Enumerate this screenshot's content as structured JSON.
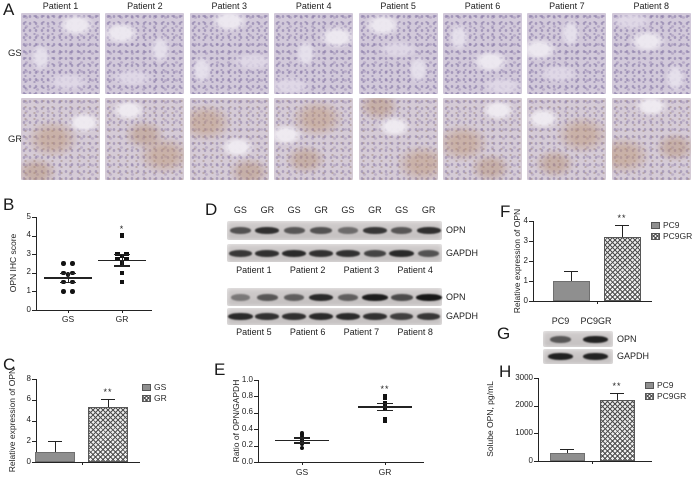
{
  "panels": {
    "A": {
      "label": "A",
      "rows": [
        "GS",
        "GR"
      ],
      "patients": [
        "Patient 1",
        "Patient 2",
        "Patient 3",
        "Patient 4",
        "Patient 5",
        "Patient 6",
        "Patient 7",
        "Patient 8"
      ]
    },
    "D": {
      "label": "D",
      "groups": [
        {
          "lane_labels": [
            "GS",
            "GR",
            "GS",
            "GR",
            "GS",
            "GR",
            "GS",
            "GR"
          ],
          "rows": [
            {
              "name": "OPN",
              "bands": [
                0.55,
                0.8,
                0.5,
                0.55,
                0.35,
                0.75,
                0.5,
                0.8
              ]
            },
            {
              "name": "GAPDH",
              "bands": [
                0.75,
                0.8,
                0.85,
                0.8,
                0.8,
                0.65,
                0.85,
                0.55
              ]
            }
          ],
          "patients": [
            "Patient 1",
            "Patient 2",
            "Patient 3",
            "Patient 4"
          ]
        },
        {
          "rows": [
            {
              "name": "OPN",
              "bands": [
                0.25,
                0.5,
                0.45,
                0.85,
                0.45,
                0.95,
                0.6,
                1.0
              ]
            },
            {
              "name": "GAPDH",
              "bands": [
                0.85,
                0.8,
                0.8,
                0.85,
                0.85,
                0.8,
                0.7,
                0.75
              ]
            }
          ],
          "patients": [
            "Patient 5",
            "Patient 6",
            "Patient 7",
            "Patient 8"
          ]
        }
      ]
    },
    "G": {
      "label": "G",
      "lane_labels": [
        "PC9",
        "PC9GR"
      ],
      "rows": [
        {
          "name": "OPN",
          "bands": [
            0.5,
            0.9
          ]
        },
        {
          "name": "GAPDH",
          "bands": [
            0.92,
            0.9
          ]
        }
      ]
    }
  },
  "chart_data": [
    {
      "id": "B",
      "panel": "B",
      "type": "scatter",
      "title": "",
      "xlabel": "",
      "ylabel": "OPN IHC score",
      "ylim": [
        0,
        5
      ],
      "tick_values": [
        0,
        1,
        2,
        3,
        4,
        5
      ],
      "tick_labels": [
        "0",
        "1",
        "2",
        "3",
        "4",
        "5"
      ],
      "groups": [
        {
          "label": "GS",
          "marker": "circle",
          "points": [
            2.5,
            2.5,
            2.0,
            2.0,
            1.9,
            1.5,
            1.5,
            1.0,
            1.0
          ],
          "mean": 1.75,
          "sem": 0.25,
          "sig": ""
        },
        {
          "label": "GR",
          "marker": "square",
          "points": [
            4.0,
            3.0,
            3.0,
            2.9,
            2.75,
            2.75,
            2.5,
            2.0,
            1.5
          ],
          "mean": 2.7,
          "sem": 0.3,
          "sig": "*"
        }
      ]
    },
    {
      "id": "C",
      "panel": "C",
      "type": "bar",
      "title": "",
      "xlabel": "",
      "ylabel": "Relative expression of OPN",
      "ylim": [
        0,
        8
      ],
      "tick_values": [
        0,
        2,
        4,
        6,
        8
      ],
      "tick_labels": [
        "0",
        "2",
        "4",
        "6",
        "8"
      ],
      "categories": [
        "GS",
        "GR"
      ],
      "values": [
        1.0,
        5.3
      ],
      "errors": [
        1.0,
        0.8
      ],
      "sig": [
        "",
        "**"
      ],
      "legend": [
        {
          "label": "GS",
          "style": "solid"
        },
        {
          "label": "GR",
          "style": "hatch"
        }
      ]
    },
    {
      "id": "E",
      "panel": "E",
      "type": "scatter",
      "title": "",
      "xlabel": "",
      "ylabel": "Ratio of OPN/GAPDH",
      "ylim": [
        0,
        1
      ],
      "tick_values": [
        0,
        0.2,
        0.4,
        0.6,
        0.8,
        1.0
      ],
      "tick_labels": [
        "0.0",
        "0.2",
        "0.4",
        "0.6",
        "0.8",
        "1.0"
      ],
      "groups": [
        {
          "label": "GS",
          "marker": "circle",
          "points": [
            0.35,
            0.33,
            0.3,
            0.28,
            0.27,
            0.26,
            0.24,
            0.22,
            0.17
          ],
          "mean": 0.27,
          "sem": 0.03,
          "sig": ""
        },
        {
          "label": "GR",
          "marker": "square",
          "points": [
            0.8,
            0.78,
            0.72,
            0.7,
            0.68,
            0.66,
            0.65,
            0.52,
            0.5
          ],
          "mean": 0.68,
          "sem": 0.04,
          "sig": "**"
        }
      ]
    },
    {
      "id": "F",
      "panel": "F",
      "type": "bar",
      "title": "",
      "xlabel": "",
      "ylabel": "Relative expression of OPN",
      "ylim": [
        0,
        4
      ],
      "tick_values": [
        0,
        1,
        2,
        3,
        4
      ],
      "tick_labels": [
        "0",
        "1",
        "2",
        "3",
        "4"
      ],
      "categories": [
        "PC9",
        "PC9GR"
      ],
      "values": [
        1.0,
        3.2
      ],
      "errors": [
        0.5,
        0.6
      ],
      "sig": [
        "",
        "**"
      ],
      "legend": [
        {
          "label": "PC9",
          "style": "solid"
        },
        {
          "label": "PC9GR",
          "style": "hatch"
        }
      ]
    },
    {
      "id": "H",
      "panel": "H",
      "type": "bar",
      "title": "",
      "xlabel": "",
      "ylabel": "Solube OPN, pg/mL",
      "ylim": [
        0,
        3000
      ],
      "tick_values": [
        0,
        1000,
        2000,
        3000
      ],
      "tick_labels": [
        "0",
        "1000",
        "2000",
        "3000"
      ],
      "categories": [
        "PC9",
        "PC9GR"
      ],
      "values": [
        300,
        2200
      ],
      "errors": [
        150,
        270
      ],
      "sig": [
        "",
        "**"
      ],
      "legend": [
        {
          "label": "PC9",
          "style": "solid"
        },
        {
          "label": "PC9GR",
          "style": "hatch"
        }
      ]
    }
  ],
  "colors": {
    "bar_gray": "#8f8f8f",
    "hatch_line": "#4f4f4f",
    "point_black": "#121212",
    "band_dark": "#171717",
    "ihc_base_gs": "#d2c9da",
    "ihc_base_gr": "#d5cbd6"
  }
}
